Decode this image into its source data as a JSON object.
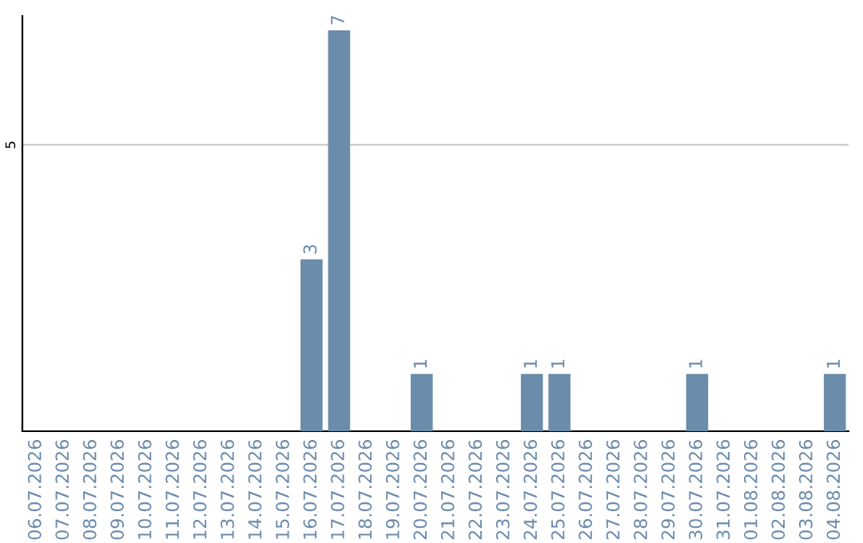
{
  "chart_data": {
    "type": "bar",
    "categories": [
      "06.07.2026",
      "07.07.2026",
      "08.07.2026",
      "09.07.2026",
      "10.07.2026",
      "11.07.2026",
      "12.07.2026",
      "13.07.2026",
      "14.07.2026",
      "15.07.2026",
      "16.07.2026",
      "17.07.2026",
      "18.07.2026",
      "19.07.2026",
      "20.07.2026",
      "21.07.2026",
      "22.07.2026",
      "23.07.2026",
      "24.07.2026",
      "25.07.2026",
      "26.07.2026",
      "27.07.2026",
      "28.07.2026",
      "29.07.2026",
      "30.07.2026",
      "31.07.2026",
      "01.08.2026",
      "02.08.2026",
      "03.08.2026",
      "04.08.2026"
    ],
    "values": [
      0,
      0,
      0,
      0,
      0,
      0,
      0,
      0,
      0,
      0,
      3,
      7,
      0,
      0,
      1,
      0,
      0,
      0,
      1,
      1,
      0,
      0,
      0,
      0,
      1,
      0,
      0,
      0,
      0,
      1
    ],
    "value_labels": [
      null,
      null,
      null,
      null,
      null,
      null,
      null,
      null,
      null,
      null,
      "3",
      "7",
      null,
      null,
      "1",
      null,
      null,
      null,
      "1",
      "1",
      null,
      null,
      null,
      null,
      "1",
      null,
      null,
      null,
      null,
      "1"
    ],
    "color": "#6b8cab",
    "ylim": [
      0,
      7.25
    ],
    "yticks": [
      5
    ],
    "grid": "y"
  }
}
